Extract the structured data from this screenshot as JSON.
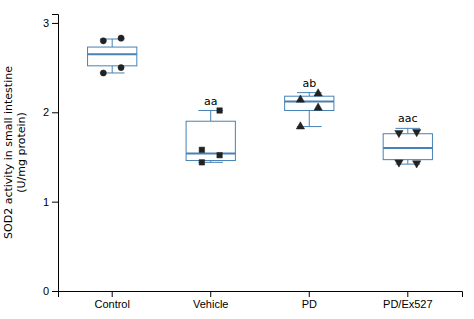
{
  "chart_data": {
    "type": "box",
    "categories": [
      "Control",
      "Vehicle",
      "PD",
      "PD/Ex527"
    ],
    "boxes": [
      {
        "median": 2.65,
        "q1": 2.52,
        "q3": 2.73,
        "whislo": 2.44,
        "whishi": 2.82,
        "points": [
          2.44,
          2.5,
          2.8,
          2.83
        ],
        "marker": "circle"
      },
      {
        "median": 1.54,
        "q1": 1.46,
        "q3": 1.9,
        "whislo": 1.44,
        "whishi": 2.02,
        "points": [
          1.58,
          1.52,
          1.44,
          2.02
        ],
        "marker": "square",
        "annotation": "aa"
      },
      {
        "median": 2.12,
        "q1": 2.02,
        "q3": 2.18,
        "whislo": 1.84,
        "whishi": 2.22,
        "points": [
          1.84,
          2.05,
          2.14,
          2.21
        ],
        "marker": "triangle-up",
        "annotation": "ab"
      },
      {
        "median": 1.6,
        "q1": 1.47,
        "q3": 1.76,
        "whislo": 1.42,
        "whishi": 1.82,
        "points": [
          1.77,
          1.78,
          1.44,
          1.43
        ],
        "marker": "triangle-down",
        "annotation": "aac"
      }
    ],
    "ylabel": [
      "SOD2 activity in small intestine",
      "(U/mg protein)"
    ],
    "ylim": [
      0,
      3.1
    ],
    "yticks": [
      0,
      1,
      2,
      3
    ]
  }
}
